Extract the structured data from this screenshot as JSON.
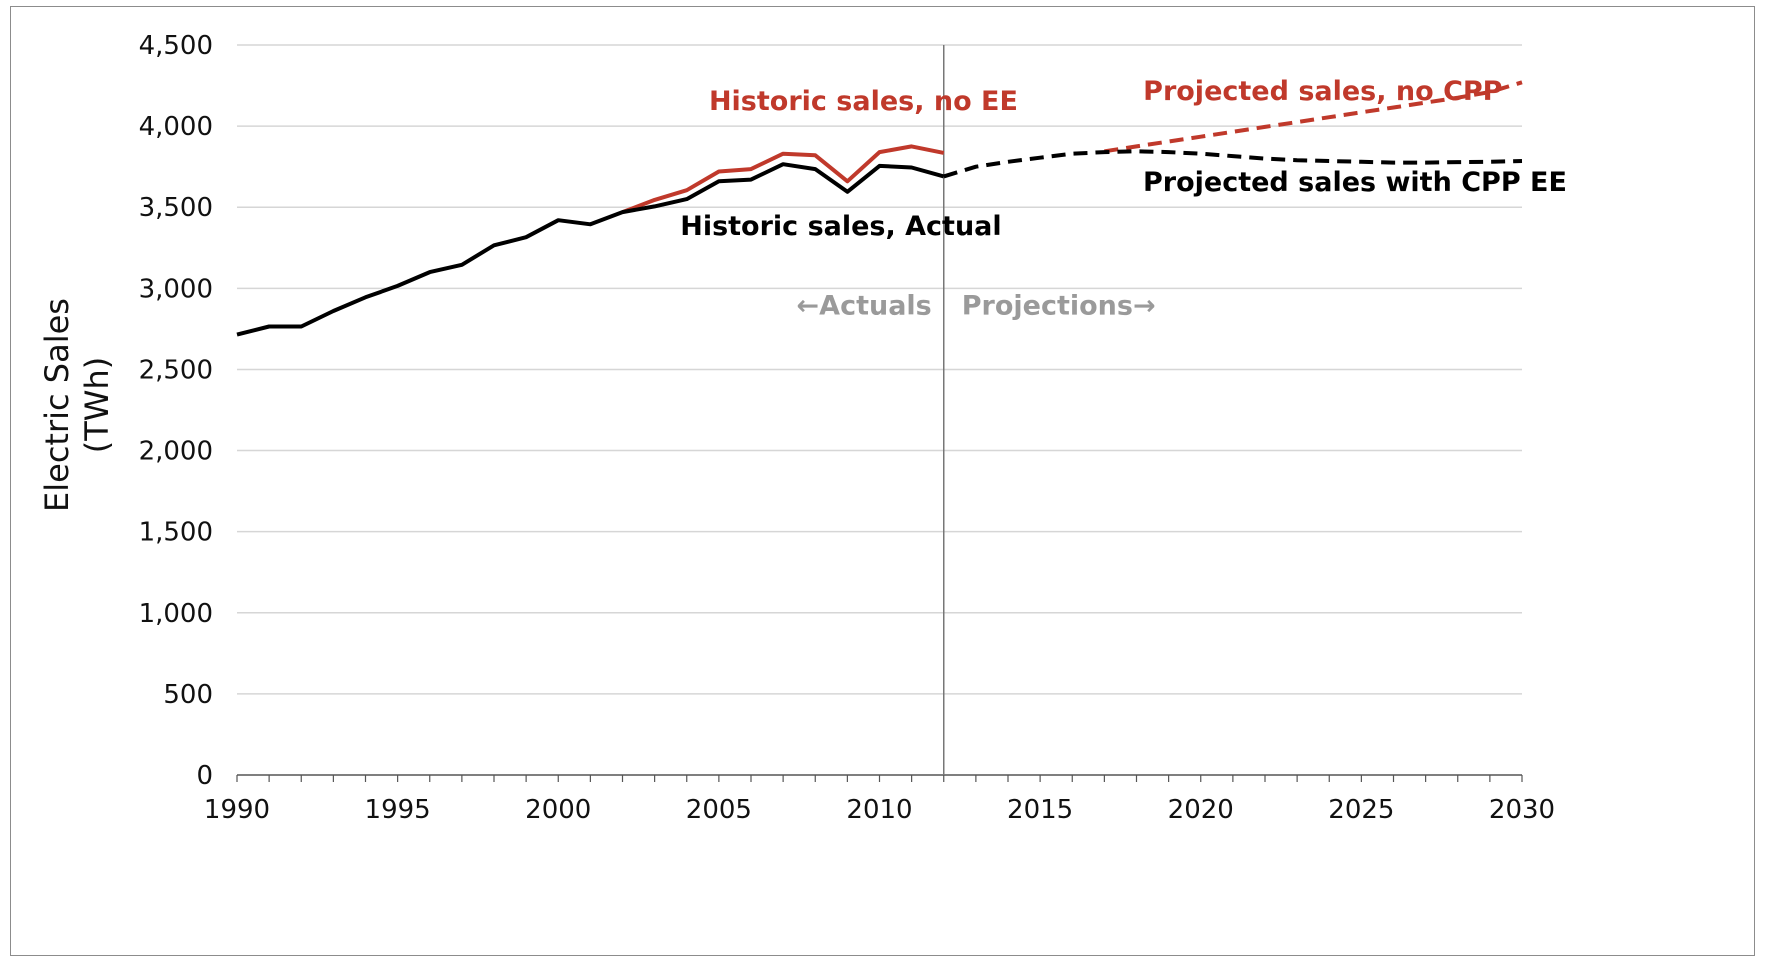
{
  "chart_data": {
    "type": "line",
    "xlabel": "",
    "ylabel_lines": [
      "Electric Sales",
      "(TWh)"
    ],
    "xlim": [
      1990,
      2030
    ],
    "ylim": [
      0,
      4500
    ],
    "x_ticks": [
      1990,
      1995,
      2000,
      2005,
      2010,
      2015,
      2020,
      2025,
      2030
    ],
    "y_ticks": [
      0,
      500,
      1000,
      1500,
      2000,
      2500,
      3000,
      3500,
      4000,
      4500
    ],
    "x_tick_labels": [
      "1990",
      "1995",
      "2000",
      "2005",
      "2010",
      "2015",
      "2020",
      "2025",
      "2030"
    ],
    "y_tick_labels": [
      "0",
      "500",
      "1,000",
      "1,500",
      "2,000",
      "2,500",
      "3,000",
      "3,500",
      "4,000",
      "4,500"
    ],
    "grid": "horizontal",
    "divider_x": 2012,
    "region_labels": {
      "left": "←Actuals",
      "right": "Projections→"
    },
    "series": [
      {
        "name": "Historic sales, no EE",
        "color": "#c0392b",
        "style": "solid",
        "x": [
          2002,
          2003,
          2004,
          2005,
          2006,
          2007,
          2008,
          2009,
          2010,
          2011,
          2012
        ],
        "y": [
          3470,
          3545,
          3605,
          3720,
          3735,
          3830,
          3820,
          3660,
          3840,
          3875,
          3835
        ]
      },
      {
        "name": "Historic sales, Actual",
        "color": "#000000",
        "style": "solid",
        "x": [
          1990,
          1991,
          1992,
          1993,
          1994,
          1995,
          1996,
          1997,
          1998,
          1999,
          2000,
          2001,
          2002,
          2003,
          2004,
          2005,
          2006,
          2007,
          2008,
          2009,
          2010,
          2011,
          2012
        ],
        "y": [
          2715,
          2765,
          2765,
          2860,
          2945,
          3015,
          3100,
          3145,
          3265,
          3315,
          3420,
          3395,
          3470,
          3505,
          3550,
          3660,
          3670,
          3765,
          3735,
          3595,
          3755,
          3745,
          3690
        ]
      },
      {
        "name": "Projected sales, no CPP",
        "color": "#c0392b",
        "style": "dashed",
        "x": [
          2017,
          2018,
          2019,
          2020,
          2021,
          2022,
          2023,
          2024,
          2025,
          2026,
          2027,
          2028,
          2029,
          2030
        ],
        "y": [
          3845,
          3875,
          3905,
          3935,
          3965,
          3995,
          4025,
          4055,
          4085,
          4115,
          4145,
          4175,
          4210,
          4270
        ]
      },
      {
        "name": "Projected sales with CPP EE",
        "color": "#000000",
        "style": "dashed",
        "x": [
          2012,
          2013,
          2014,
          2015,
          2016,
          2017,
          2018,
          2019,
          2020,
          2021,
          2022,
          2023,
          2024,
          2025,
          2026,
          2027,
          2028,
          2029,
          2030
        ],
        "y": [
          3690,
          3750,
          3780,
          3805,
          3830,
          3840,
          3845,
          3840,
          3830,
          3815,
          3800,
          3790,
          3785,
          3780,
          3775,
          3775,
          3778,
          3780,
          3785
        ]
      }
    ],
    "annotations": [
      {
        "text": "Historic sales, no EE",
        "color": "#c0392b",
        "anchor_x": 2009.5,
        "anchor_y": 4100
      },
      {
        "text": "Historic sales, Actual",
        "color": "#000000",
        "anchor_x": 2008.8,
        "anchor_y": 3330
      },
      {
        "text": "Projected sales, no CPP",
        "color": "#c0392b",
        "anchor_x": 2023.8,
        "anchor_y": 4160
      },
      {
        "text": "Projected sales with CPP EE",
        "color": "#000000",
        "anchor_x": 2024.8,
        "anchor_y": 3600
      }
    ]
  }
}
